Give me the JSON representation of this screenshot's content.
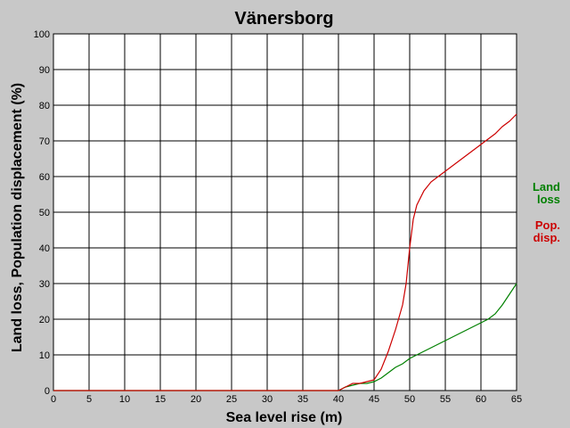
{
  "chart_data": {
    "type": "line",
    "title": "Vänersborg",
    "xlabel": "Sea level rise (m)",
    "ylabel": "Land loss, Population displacement (%)",
    "xlim": [
      0,
      65
    ],
    "ylim": [
      0,
      100
    ],
    "xticks": [
      0,
      5,
      10,
      15,
      20,
      25,
      30,
      35,
      40,
      45,
      50,
      55,
      60,
      65
    ],
    "yticks": [
      0,
      10,
      20,
      30,
      40,
      50,
      60,
      70,
      80,
      90,
      100
    ],
    "grid": true,
    "legend_position": "right",
    "series": [
      {
        "key": "land",
        "legend_lines": [
          "Land",
          "loss"
        ],
        "color": "#008000",
        "points": [
          [
            0,
            0
          ],
          [
            40,
            0
          ],
          [
            41,
            1
          ],
          [
            42,
            1.5
          ],
          [
            43,
            2
          ],
          [
            44,
            2
          ],
          [
            45,
            2.5
          ],
          [
            46,
            3.5
          ],
          [
            47,
            5
          ],
          [
            48,
            6.5
          ],
          [
            49,
            7.5
          ],
          [
            50,
            9
          ],
          [
            51,
            10
          ],
          [
            52,
            11
          ],
          [
            53,
            12
          ],
          [
            54,
            13
          ],
          [
            55,
            14
          ],
          [
            56,
            15
          ],
          [
            57,
            16
          ],
          [
            58,
            17
          ],
          [
            59,
            18
          ],
          [
            60,
            19
          ],
          [
            61,
            20
          ],
          [
            62,
            21.5
          ],
          [
            63,
            24
          ],
          [
            64,
            27
          ],
          [
            65,
            30
          ]
        ]
      },
      {
        "key": "pop",
        "legend_lines": [
          "Pop.",
          "disp."
        ],
        "color": "#cc0000",
        "points": [
          [
            0,
            0
          ],
          [
            40,
            0
          ],
          [
            41,
            1
          ],
          [
            42,
            2
          ],
          [
            43,
            2
          ],
          [
            44,
            2.5
          ],
          [
            45,
            3
          ],
          [
            46,
            6
          ],
          [
            47,
            11
          ],
          [
            48,
            17
          ],
          [
            49,
            24
          ],
          [
            49.5,
            30
          ],
          [
            50,
            40
          ],
          [
            50.5,
            48
          ],
          [
            51,
            52
          ],
          [
            52,
            56
          ],
          [
            53,
            58.5
          ],
          [
            54,
            60
          ],
          [
            55,
            61.5
          ],
          [
            56,
            63
          ],
          [
            57,
            64.5
          ],
          [
            58,
            66
          ],
          [
            59,
            67.5
          ],
          [
            60,
            69
          ],
          [
            61,
            70.5
          ],
          [
            62,
            72
          ],
          [
            63,
            74
          ],
          [
            64,
            75.5
          ],
          [
            65,
            77.5
          ]
        ]
      }
    ]
  }
}
